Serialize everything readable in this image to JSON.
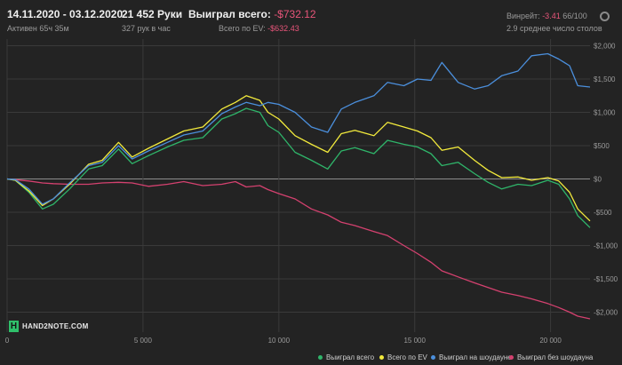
{
  "header": {
    "date_range": "14.11.2020 - 03.12.2020",
    "active": "Активен 65ч 35м",
    "hands": "21 452 Руки",
    "hands_per_hour": "327 рук в час",
    "won_total_label": "Выиграл всего:",
    "won_total_value": "-$732.12",
    "ev_label": "Всего по EV:",
    "ev_value": "-$632.43",
    "winrate_label": "Винрейт:",
    "winrate_value": "-3.41",
    "winrate_unit": "66/100",
    "tables_avg": "2.9 среднее число столов"
  },
  "logo": {
    "mark": "H",
    "text": "HAND2NOTE.COM"
  },
  "colors": {
    "background": "#232323",
    "grid": "#3a3a3a",
    "zero_line": "#8c8c8c",
    "won_total": "#2fb56a",
    "ev": "#f2ea3c",
    "showdown": "#4b8fdc",
    "non_showdown": "#d4416f",
    "negative_text": "#e8557a"
  },
  "chart_data": {
    "type": "line",
    "xlim": [
      0,
      21452
    ],
    "ylim": [
      -2300,
      2100
    ],
    "x_ticks": [
      0,
      5000,
      10000,
      15000,
      20000
    ],
    "x_tick_labels": [
      "0",
      "5 000",
      "10 000",
      "15 000",
      "20 000"
    ],
    "y_ticks": [
      2000,
      1500,
      1000,
      500,
      0,
      -500,
      -1000,
      -1500,
      -2000
    ],
    "y_tick_labels": [
      "$2,000",
      "$1,500",
      "$1,000",
      "$500",
      "$0",
      "-$500",
      "-$1,000",
      "-$1,500",
      "-$2,000"
    ],
    "grid": true,
    "legend_position": "bottom-right",
    "series": [
      {
        "name": "Выиграл всего",
        "color": "#2fb56a",
        "x": [
          0,
          300,
          800,
          1300,
          1700,
          2300,
          3000,
          3500,
          4100,
          4600,
          5200,
          5900,
          6500,
          7200,
          7900,
          8400,
          8800,
          9300,
          9600,
          10000,
          10600,
          11200,
          11800,
          12300,
          12800,
          13500,
          14000,
          14600,
          15100,
          15600,
          16000,
          16600,
          17200,
          17700,
          18200,
          18800,
          19300,
          19900,
          20300,
          20700,
          21000,
          21452
        ],
        "y": [
          0,
          -20,
          -200,
          -450,
          -380,
          -150,
          150,
          200,
          450,
          230,
          350,
          480,
          580,
          620,
          900,
          980,
          1060,
          1000,
          800,
          700,
          400,
          280,
          150,
          420,
          470,
          380,
          580,
          520,
          480,
          380,
          200,
          250,
          80,
          -50,
          -150,
          -80,
          -100,
          -20,
          -80,
          -300,
          -550,
          -730
        ]
      },
      {
        "name": "Всего по EV",
        "color": "#f2ea3c",
        "x": [
          0,
          300,
          800,
          1300,
          1700,
          2300,
          3000,
          3500,
          4100,
          4600,
          5200,
          5900,
          6500,
          7200,
          7900,
          8400,
          8800,
          9300,
          9600,
          10000,
          10600,
          11200,
          11800,
          12300,
          12800,
          13500,
          14000,
          14600,
          15100,
          15600,
          16000,
          16600,
          17200,
          17700,
          18200,
          18800,
          19300,
          19900,
          20300,
          20700,
          21000,
          21452
        ],
        "y": [
          0,
          -20,
          -180,
          -400,
          -300,
          -80,
          220,
          280,
          550,
          330,
          460,
          600,
          720,
          780,
          1050,
          1150,
          1250,
          1180,
          1000,
          900,
          650,
          520,
          400,
          680,
          730,
          650,
          850,
          780,
          720,
          620,
          430,
          480,
          280,
          130,
          20,
          30,
          -20,
          20,
          -30,
          -200,
          -450,
          -630
        ]
      },
      {
        "name": "Выиграл на шоудауне",
        "color": "#4b8fdc",
        "x": [
          0,
          300,
          800,
          1300,
          1700,
          2300,
          3000,
          3500,
          4100,
          4600,
          5200,
          5900,
          6500,
          7200,
          7900,
          8400,
          8800,
          9300,
          9600,
          10000,
          10600,
          11200,
          11800,
          12300,
          12800,
          13500,
          14000,
          14600,
          15100,
          15600,
          16000,
          16600,
          17200,
          17700,
          18200,
          18800,
          19300,
          19900,
          20300,
          20700,
          21000,
          21452
        ],
        "y": [
          0,
          -10,
          -150,
          -380,
          -300,
          -60,
          200,
          250,
          500,
          300,
          420,
          550,
          660,
          720,
          980,
          1080,
          1150,
          1100,
          1150,
          1120,
          1000,
          780,
          700,
          1050,
          1150,
          1250,
          1450,
          1400,
          1500,
          1480,
          1750,
          1450,
          1350,
          1400,
          1550,
          1620,
          1850,
          1880,
          1800,
          1700,
          1400,
          1380
        ]
      },
      {
        "name": "Выиграл без шоудауна",
        "color": "#d4416f",
        "x": [
          0,
          300,
          800,
          1300,
          1700,
          2300,
          3000,
          3500,
          4100,
          4600,
          5200,
          5900,
          6500,
          7200,
          7900,
          8400,
          8800,
          9300,
          9600,
          10000,
          10600,
          11200,
          11800,
          12300,
          12800,
          13500,
          14000,
          14600,
          15100,
          15600,
          16000,
          16600,
          17200,
          17700,
          18200,
          18800,
          19300,
          19900,
          20300,
          20700,
          21000,
          21452
        ],
        "y": [
          0,
          -10,
          -30,
          -60,
          -70,
          -80,
          -80,
          -60,
          -50,
          -60,
          -110,
          -80,
          -40,
          -100,
          -80,
          -40,
          -120,
          -100,
          -160,
          -220,
          -300,
          -450,
          -540,
          -650,
          -700,
          -790,
          -850,
          -1000,
          -1120,
          -1250,
          -1380,
          -1470,
          -1560,
          -1630,
          -1700,
          -1750,
          -1800,
          -1870,
          -1930,
          -2000,
          -2060,
          -2100
        ]
      }
    ]
  }
}
